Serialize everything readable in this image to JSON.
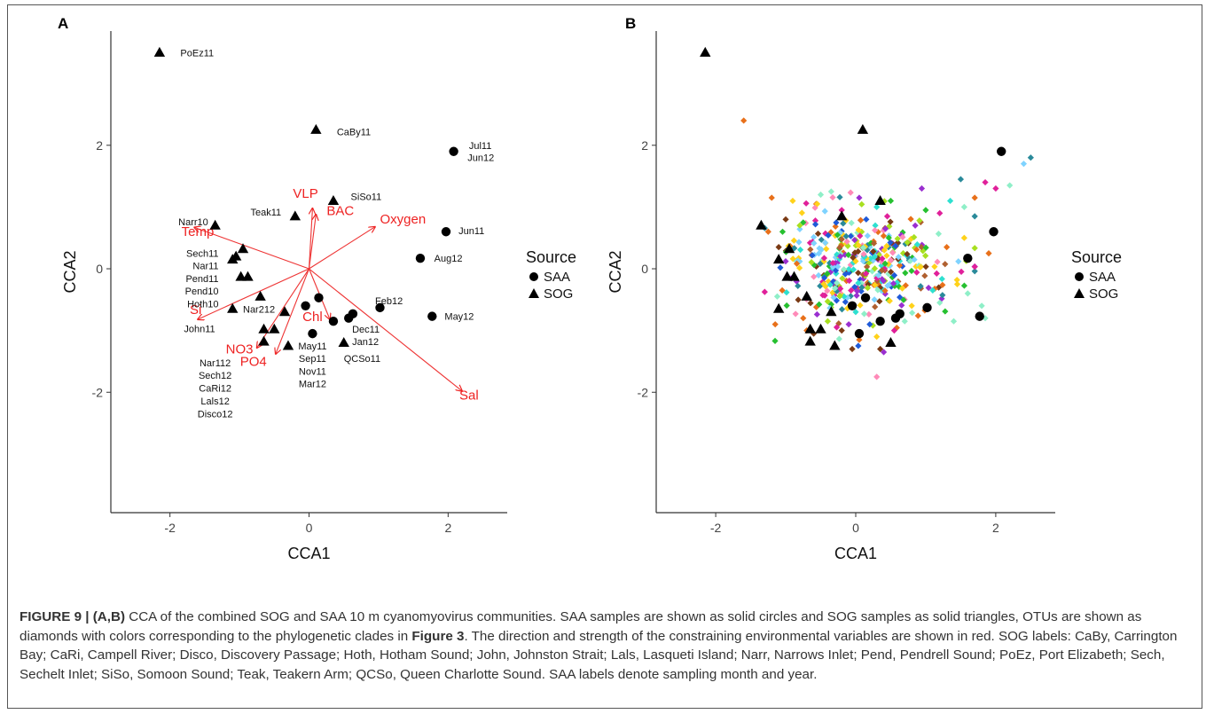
{
  "figure": {
    "caption_lead": "FIGURE 9 | (A,B)",
    "caption_part1": " CCA of the combined SOG and SAA 10 m cyanomyovirus communities. SAA samples are shown as solid circles and SOG samples as solid triangles, OTUs are shown as diamonds with colors corresponding to the phylogenetic clades in ",
    "caption_ref": "Figure 3",
    "caption_part2": ". The direction and strength of the constraining environmental variables are shown in red. SOG labels: CaBy, Carrington Bay; CaRi, Campell River; Disco, Discovery Passage; Hoth, Hotham Sound; John, Johnston Strait; Lals, Lasqueti Island; Narr, Narrows Inlet; Pend, Pendrell Sound; PoEz, Port Elizabeth; Sech, Sechelt Inlet; SiSo, Somoon Sound; Teak, Teakern Arm; QCSo, Queen Charlotte Sound. SAA labels denote sampling month and year."
  },
  "colors": {
    "arrow": "#ee2222",
    "point": "#000000",
    "axis": "#333333"
  },
  "chart_data": [
    {
      "panel": "A",
      "type": "scatter",
      "xlabel": "CCA1",
      "ylabel": "CCA2",
      "xlim": [
        -2.85,
        2.85
      ],
      "ylim": [
        -3.95,
        3.85
      ],
      "xticks": [
        -2,
        0,
        2
      ],
      "yticks": [
        -2,
        0,
        2
      ],
      "legend": {
        "title": "Source",
        "entries": [
          {
            "name": "SAA",
            "marker": "circle"
          },
          {
            "name": "SOG",
            "marker": "triangle"
          }
        ]
      },
      "points": [
        {
          "x": -2.15,
          "y": 3.5,
          "source": "SOG"
        },
        {
          "x": 0.1,
          "y": 2.25,
          "source": "SOG"
        },
        {
          "x": 0.35,
          "y": 1.1,
          "source": "SOG"
        },
        {
          "x": -0.2,
          "y": 0.85,
          "source": "SOG"
        },
        {
          "x": -1.35,
          "y": 0.7,
          "source": "SOG"
        },
        {
          "x": -0.95,
          "y": 0.32,
          "source": "SOG"
        },
        {
          "x": -1.05,
          "y": 0.2,
          "source": "SOG"
        },
        {
          "x": -1.1,
          "y": 0.15,
          "source": "SOG"
        },
        {
          "x": -0.88,
          "y": -0.13,
          "source": "SOG"
        },
        {
          "x": -0.98,
          "y": -0.13,
          "source": "SOG"
        },
        {
          "x": -0.7,
          "y": -0.45,
          "source": "SOG"
        },
        {
          "x": -0.35,
          "y": -0.7,
          "source": "SOG"
        },
        {
          "x": -1.1,
          "y": -0.65,
          "source": "SOG"
        },
        {
          "x": -0.65,
          "y": -0.98,
          "source": "SOG"
        },
        {
          "x": -0.5,
          "y": -0.98,
          "source": "SOG"
        },
        {
          "x": -0.65,
          "y": -1.18,
          "source": "SOG"
        },
        {
          "x": -0.3,
          "y": -1.25,
          "source": "SOG"
        },
        {
          "x": 0.5,
          "y": -1.2,
          "source": "SOG"
        },
        {
          "x": 2.08,
          "y": 1.9,
          "source": "SAA"
        },
        {
          "x": 1.97,
          "y": 0.6,
          "source": "SAA"
        },
        {
          "x": 1.6,
          "y": 0.17,
          "source": "SAA"
        },
        {
          "x": 1.02,
          "y": -0.63,
          "source": "SAA"
        },
        {
          "x": 1.77,
          "y": -0.77,
          "source": "SAA"
        },
        {
          "x": 0.63,
          "y": -0.73,
          "source": "SAA"
        },
        {
          "x": 0.57,
          "y": -0.8,
          "source": "SAA"
        },
        {
          "x": 0.14,
          "y": -0.47,
          "source": "SAA"
        },
        {
          "x": -0.05,
          "y": -0.6,
          "source": "SAA"
        },
        {
          "x": 0.35,
          "y": -0.85,
          "source": "SAA"
        },
        {
          "x": 0.05,
          "y": -1.05,
          "source": "SAA"
        }
      ],
      "labels": [
        {
          "text": "PoEz11",
          "x": -1.85,
          "y": 3.5,
          "anchor": "start"
        },
        {
          "text": "CaBy11",
          "x": 0.4,
          "y": 2.22,
          "anchor": "start"
        },
        {
          "text": "Jul11",
          "x": 2.3,
          "y": 2.0,
          "anchor": "start"
        },
        {
          "text": "Jun12",
          "x": 2.28,
          "y": 1.8,
          "anchor": "start"
        },
        {
          "text": "SiSo11",
          "x": 0.6,
          "y": 1.17,
          "anchor": "start"
        },
        {
          "text": "Teak11",
          "x": -0.4,
          "y": 0.92,
          "anchor": "end"
        },
        {
          "text": "Narr10",
          "x": -1.45,
          "y": 0.76,
          "anchor": "end"
        },
        {
          "text": "Jun11",
          "x": 2.15,
          "y": 0.62,
          "anchor": "start"
        },
        {
          "text": "Aug12",
          "x": 1.8,
          "y": 0.17,
          "anchor": "start"
        },
        {
          "text": "Sech11",
          "x": -1.3,
          "y": 0.25,
          "anchor": "end"
        },
        {
          "text": "Nar11",
          "x": -1.3,
          "y": 0.05,
          "anchor": "end"
        },
        {
          "text": "Pend11",
          "x": -1.3,
          "y": -0.16,
          "anchor": "end"
        },
        {
          "text": "Pend10",
          "x": -1.3,
          "y": -0.36,
          "anchor": "end"
        },
        {
          "text": "Hoth10",
          "x": -1.3,
          "y": -0.57,
          "anchor": "end"
        },
        {
          "text": "Nar212",
          "x": -0.95,
          "y": -0.65,
          "anchor": "start"
        },
        {
          "text": "Feb12",
          "x": 0.95,
          "y": -0.52,
          "anchor": "start"
        },
        {
          "text": "May12",
          "x": 1.95,
          "y": -0.77,
          "anchor": "start"
        },
        {
          "text": "John11",
          "x": -1.35,
          "y": -0.97,
          "anchor": "end"
        },
        {
          "text": "Dec11",
          "x": 0.62,
          "y": -0.98,
          "anchor": "start"
        },
        {
          "text": "Jan12",
          "x": 0.62,
          "y": -1.18,
          "anchor": "start"
        },
        {
          "text": "May11",
          "x": 0.05,
          "y": -1.25,
          "anchor": "middle"
        },
        {
          "text": "QCSo11",
          "x": 0.5,
          "y": -1.45,
          "anchor": "start"
        },
        {
          "text": "Sep11",
          "x": 0.05,
          "y": -1.45,
          "anchor": "middle"
        },
        {
          "text": "Nar112",
          "x": -1.35,
          "y": -1.52,
          "anchor": "middle"
        },
        {
          "text": "Nov11",
          "x": 0.05,
          "y": -1.66,
          "anchor": "middle"
        },
        {
          "text": "Sech12",
          "x": -1.35,
          "y": -1.72,
          "anchor": "middle"
        },
        {
          "text": "Mar12",
          "x": 0.05,
          "y": -1.86,
          "anchor": "middle"
        },
        {
          "text": "CaRi12",
          "x": -1.35,
          "y": -1.93,
          "anchor": "middle"
        },
        {
          "text": "Lals12",
          "x": -1.35,
          "y": -2.14,
          "anchor": "middle"
        },
        {
          "text": "Disco12",
          "x": -1.35,
          "y": -2.35,
          "anchor": "middle"
        }
      ],
      "arrows": [
        {
          "name": "VLP",
          "x": 0.05,
          "y": 0.98,
          "lx": -0.05,
          "ly": 1.15
        },
        {
          "name": "BAC",
          "x": 0.1,
          "y": 0.88,
          "lx": 0.45,
          "ly": 0.87
        },
        {
          "name": "Oxygen",
          "x": 0.95,
          "y": 0.68,
          "lx": 1.35,
          "ly": 0.73
        },
        {
          "name": "Temp",
          "x": -1.65,
          "y": 0.67,
          "lx": -1.6,
          "ly": 0.53
        },
        {
          "name": "Si",
          "x": -1.6,
          "y": -0.82,
          "lx": -1.63,
          "ly": -0.73
        },
        {
          "name": "Chl",
          "x": 0.3,
          "y": -0.82,
          "lx": 0.05,
          "ly": -0.85
        },
        {
          "name": "NO3",
          "x": -0.75,
          "y": -1.28,
          "lx": -1.0,
          "ly": -1.37
        },
        {
          "name": "PO4",
          "x": -0.48,
          "y": -1.38,
          "lx": -0.8,
          "ly": -1.57
        },
        {
          "name": "Sal",
          "x": 2.2,
          "y": -1.98,
          "lx": 2.3,
          "ly": -2.12
        }
      ]
    },
    {
      "panel": "B",
      "type": "scatter",
      "xlabel": "CCA1",
      "ylabel": "CCA2",
      "xlim": [
        -2.85,
        2.85
      ],
      "ylim": [
        -3.95,
        3.85
      ],
      "xticks": [
        -2,
        0,
        2
      ],
      "yticks": [
        -2,
        0,
        2
      ],
      "legend": {
        "title": "Source",
        "entries": [
          {
            "name": "SAA",
            "marker": "circle"
          },
          {
            "name": "SOG",
            "marker": "triangle"
          }
        ]
      },
      "otu_palette": [
        "#e8701a",
        "#7a3a14",
        "#ffd21a",
        "#2ee0d0",
        "#8fefc8",
        "#9a2fd0",
        "#2a8a9a",
        "#e0209a",
        "#26c030",
        "#1f5ad8",
        "#7fd3ff",
        "#a8e020",
        "#b06030",
        "#ff8ab8"
      ],
      "otus": [
        {
          "x": -1.6,
          "y": 2.4,
          "c": 0
        },
        {
          "x": 0.3,
          "y": -1.75,
          "c": 13
        },
        {
          "x": 2.5,
          "y": 1.8,
          "c": 6
        },
        {
          "x": 2.4,
          "y": 1.7,
          "c": 10
        },
        {
          "x": 2.2,
          "y": 1.35,
          "c": 4
        },
        {
          "x": 2.0,
          "y": 1.3,
          "c": 7
        },
        {
          "x": 1.85,
          "y": 1.4,
          "c": 7
        },
        {
          "x": 1.5,
          "y": 1.45,
          "c": 6
        },
        {
          "x": 1.7,
          "y": 1.15,
          "c": 0
        },
        {
          "x": 1.55,
          "y": 1.0,
          "c": 4
        },
        {
          "x": 1.35,
          "y": 1.1,
          "c": 3
        },
        {
          "x": 1.2,
          "y": 0.9,
          "c": 7
        },
        {
          "x": 1.7,
          "y": 0.85,
          "c": 6
        },
        {
          "x": 1.9,
          "y": 0.25,
          "c": 0
        },
        {
          "x": 1.8,
          "y": -0.6,
          "c": 4
        },
        {
          "x": 1.85,
          "y": -0.8,
          "c": 4
        },
        {
          "x": 1.6,
          "y": -0.4,
          "c": 4
        },
        {
          "x": 1.45,
          "y": -0.25,
          "c": 2
        },
        {
          "x": 1.4,
          "y": -0.85,
          "c": 4
        },
        {
          "x": 1.2,
          "y": -0.55,
          "c": 4
        },
        {
          "x": 1.1,
          "y": -0.35,
          "c": 3
        },
        {
          "x": 1.55,
          "y": 0.5,
          "c": 2
        },
        {
          "x": 1.3,
          "y": 0.35,
          "c": 0
        },
        {
          "x": -1.2,
          "y": 1.15,
          "c": 0
        },
        {
          "x": -1.25,
          "y": 0.6,
          "c": 0
        },
        {
          "x": -1.1,
          "y": 0.35,
          "c": 1
        },
        {
          "x": -1.0,
          "y": 0.8,
          "c": 1
        },
        {
          "x": -0.9,
          "y": 1.1,
          "c": 2
        },
        {
          "x": -0.75,
          "y": 0.75,
          "c": 8
        },
        {
          "x": -0.55,
          "y": 1.05,
          "c": 2
        },
        {
          "x": -0.5,
          "y": 1.2,
          "c": 4
        },
        {
          "x": -0.2,
          "y": 0.95,
          "c": 7
        },
        {
          "x": -0.35,
          "y": 1.25,
          "c": 4
        },
        {
          "x": 0.05,
          "y": 1.15,
          "c": 5
        },
        {
          "x": 0.3,
          "y": 1.0,
          "c": 3
        },
        {
          "x": 0.5,
          "y": 1.1,
          "c": 8
        },
        {
          "x": 0.45,
          "y": 0.85,
          "c": 7
        },
        {
          "x": 0.15,
          "y": 0.8,
          "c": 9
        },
        {
          "x": 1.0,
          "y": 0.95,
          "c": 8
        },
        {
          "x": 0.85,
          "y": 0.7,
          "c": 5
        },
        {
          "x": -1.05,
          "y": -0.35,
          "c": 0
        },
        {
          "x": -1.15,
          "y": -0.9,
          "c": 0
        },
        {
          "x": -0.75,
          "y": -0.8,
          "c": 0
        },
        {
          "x": -0.7,
          "y": -1.0,
          "c": 0
        },
        {
          "x": -0.6,
          "y": -1.05,
          "c": 1
        },
        {
          "x": -0.4,
          "y": -0.85,
          "c": 11
        },
        {
          "x": -0.2,
          "y": -1.0,
          "c": 1
        },
        {
          "x": 0.3,
          "y": -1.1,
          "c": 2
        },
        {
          "x": 0.35,
          "y": -1.3,
          "c": 1
        },
        {
          "x": 0.4,
          "y": -1.35,
          "c": 5
        },
        {
          "x": 0.2,
          "y": -0.9,
          "c": 9
        },
        {
          "x": 0.05,
          "y": -1.15,
          "c": 0
        },
        {
          "x": -0.1,
          "y": -0.9,
          "c": 5
        },
        {
          "x": 0.55,
          "y": -1.0,
          "c": 7
        },
        {
          "x": 0.7,
          "y": -0.85,
          "c": 4
        },
        {
          "x": 0.8,
          "y": -0.6,
          "c": 2
        },
        {
          "x": -0.05,
          "y": -1.3,
          "c": 1
        }
      ],
      "otu_cluster": {
        "count": 420,
        "seed": 7,
        "center_x": 0.1,
        "center_y": 0.05,
        "spread_x": 0.55,
        "spread_y": 0.42
      },
      "points": [
        {
          "x": -2.15,
          "y": 3.5,
          "source": "SOG"
        },
        {
          "x": 0.1,
          "y": 2.25,
          "source": "SOG"
        },
        {
          "x": 0.35,
          "y": 1.1,
          "source": "SOG"
        },
        {
          "x": -0.2,
          "y": 0.85,
          "source": "SOG"
        },
        {
          "x": -1.35,
          "y": 0.7,
          "source": "SOG"
        },
        {
          "x": -0.95,
          "y": 0.32,
          "source": "SOG"
        },
        {
          "x": -1.1,
          "y": 0.15,
          "source": "SOG"
        },
        {
          "x": -0.88,
          "y": -0.13,
          "source": "SOG"
        },
        {
          "x": -0.98,
          "y": -0.13,
          "source": "SOG"
        },
        {
          "x": -0.7,
          "y": -0.45,
          "source": "SOG"
        },
        {
          "x": -0.35,
          "y": -0.7,
          "source": "SOG"
        },
        {
          "x": -1.1,
          "y": -0.65,
          "source": "SOG"
        },
        {
          "x": -0.65,
          "y": -0.98,
          "source": "SOG"
        },
        {
          "x": -0.5,
          "y": -0.98,
          "source": "SOG"
        },
        {
          "x": -0.65,
          "y": -1.18,
          "source": "SOG"
        },
        {
          "x": -0.3,
          "y": -1.25,
          "source": "SOG"
        },
        {
          "x": 0.5,
          "y": -1.2,
          "source": "SOG"
        },
        {
          "x": 2.08,
          "y": 1.9,
          "source": "SAA"
        },
        {
          "x": 1.97,
          "y": 0.6,
          "source": "SAA"
        },
        {
          "x": 1.6,
          "y": 0.17,
          "source": "SAA"
        },
        {
          "x": 1.02,
          "y": -0.63,
          "source": "SAA"
        },
        {
          "x": 1.77,
          "y": -0.77,
          "source": "SAA"
        },
        {
          "x": 0.63,
          "y": -0.73,
          "source": "SAA"
        },
        {
          "x": 0.57,
          "y": -0.8,
          "source": "SAA"
        },
        {
          "x": 0.14,
          "y": -0.47,
          "source": "SAA"
        },
        {
          "x": -0.05,
          "y": -0.6,
          "source": "SAA"
        },
        {
          "x": 0.35,
          "y": -0.85,
          "source": "SAA"
        },
        {
          "x": 0.05,
          "y": -1.05,
          "source": "SAA"
        }
      ]
    }
  ]
}
